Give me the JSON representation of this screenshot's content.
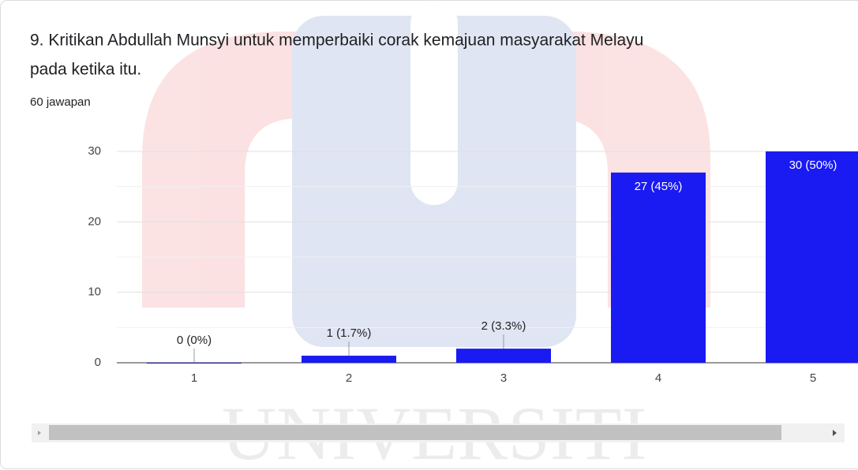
{
  "chart_data": {
    "type": "bar",
    "title": [
      "9. Kritikan Abdullah Munsyi untuk memperbaiki corak kemajuan masyarakat Melayu",
      "pada ketika itu."
    ],
    "subtitle": "60 jawapan",
    "watermark": "UNIVERSITI",
    "categories": [
      "1",
      "2",
      "3",
      "4",
      "5"
    ],
    "values": [
      0,
      1,
      2,
      27,
      30
    ],
    "value_labels": [
      "0 (0%)",
      "1 (1.7%)",
      "2 (3.3%)",
      "27 (45%)",
      "30 (50%)"
    ],
    "color": "#1a1af2",
    "ylim": [
      0,
      30
    ],
    "yticks": [
      0,
      10,
      20,
      30
    ],
    "minor_yticks": [
      5,
      15,
      25
    ],
    "grid": true
  }
}
